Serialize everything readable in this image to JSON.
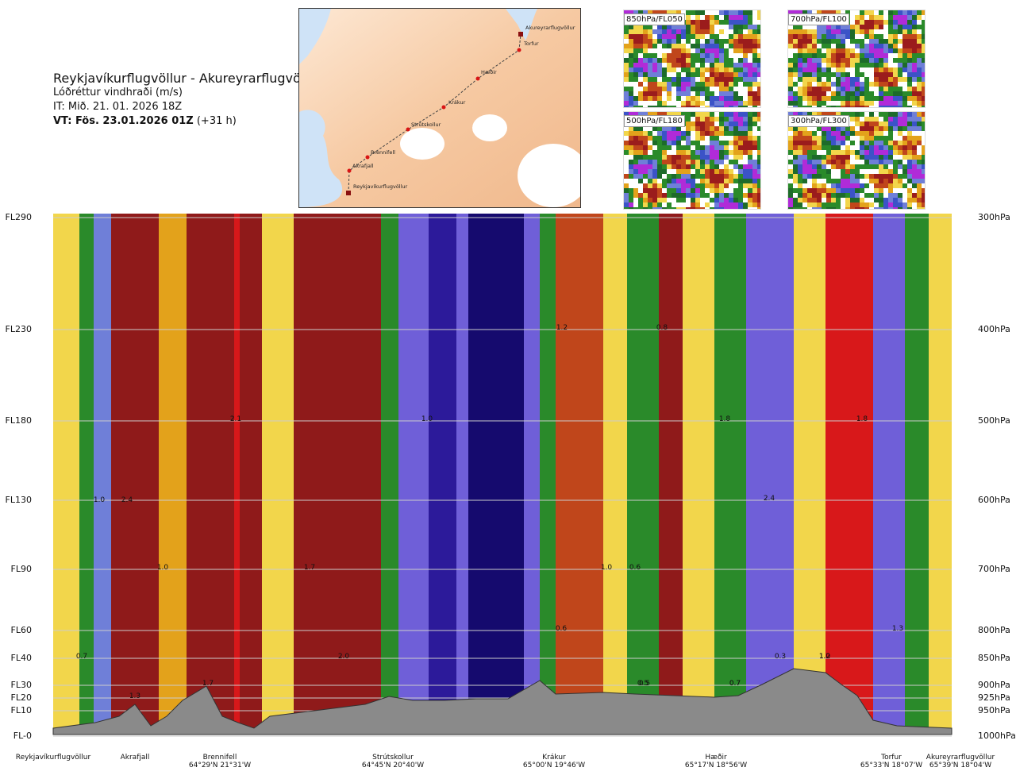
{
  "title": {
    "route": "Reykjavíkurflugvöllur - Akureyrarflugvöllur",
    "variable": "Lóðréttur vindhraði (m/s)",
    "issue": "IT: Mið. 21. 01. 2026 18Z",
    "valid_bold": "VT: Fös. 23.01.2026 01Z",
    "valid_offset": "(+31 h)"
  },
  "route_map": {
    "points": [
      {
        "name": "Akureyrarflugvöllur",
        "kind": "airport"
      },
      {
        "name": "Torfur",
        "kind": "waypoint"
      },
      {
        "name": "Hæðir",
        "kind": "waypoint"
      },
      {
        "name": "Krákur",
        "kind": "waypoint"
      },
      {
        "name": "Strútskollur",
        "kind": "waypoint"
      },
      {
        "name": "Brennifell",
        "kind": "waypoint"
      },
      {
        "name": "Akrafjall",
        "kind": "waypoint"
      },
      {
        "name": "Reykjavíkurflugvöllur",
        "kind": "airport"
      }
    ]
  },
  "thumbnails": [
    {
      "label": "850hPa/FL050"
    },
    {
      "label": "700hPa/FL100"
    },
    {
      "label": "500hPa/FL180"
    },
    {
      "label": "300hPa/FL300"
    }
  ],
  "chart_data": {
    "type": "heatmap",
    "title": "Lóðréttur vindhraði (m/s)",
    "flight_levels": [
      "FL290",
      "FL230",
      "FL180",
      "FL130",
      "FL90",
      "FL60",
      "FL40",
      "FL30",
      "FL20",
      "FL10",
      "FL-0"
    ],
    "pressure_levels": [
      "300hPa",
      "400hPa",
      "500hPa",
      "600hPa",
      "700hPa",
      "800hPa",
      "850hPa",
      "900hPa",
      "925hPa",
      "950hPa",
      "1000hPa"
    ],
    "stations": [
      {
        "name": "Reykjavíkurflugvöllur",
        "coord": ""
      },
      {
        "name": "Akrafjall",
        "coord": ""
      },
      {
        "name": "Brennifell",
        "coord": "64°29'N 21°31'W"
      },
      {
        "name": "Strútskollur",
        "coord": "64°45'N 20°40'W"
      },
      {
        "name": "Krákur",
        "coord": "65°00'N 19°46'W"
      },
      {
        "name": "Hæðir",
        "coord": "65°17'N 18°56'W"
      },
      {
        "name": "Torfur",
        "coord": "65°33'N 18°07'W"
      },
      {
        "name": "Akureyrarflugvöllur",
        "coord": "65°39'N 18°04'W"
      }
    ],
    "contour_labels": [
      "1.0",
      "2.4",
      "2.1",
      "1.0",
      "1.7",
      "2.0",
      "0.7",
      "0.5",
      "1.8",
      "0.7",
      "1.7",
      "1.3",
      "0.6",
      "1.0",
      "1.2",
      "0.6",
      "1.0",
      "1.2",
      "1.8",
      "2.4",
      "0.5",
      "0.7",
      "0.3",
      "1.0",
      "1.3",
      "0.8"
    ],
    "grid": true,
    "legend": "none"
  }
}
